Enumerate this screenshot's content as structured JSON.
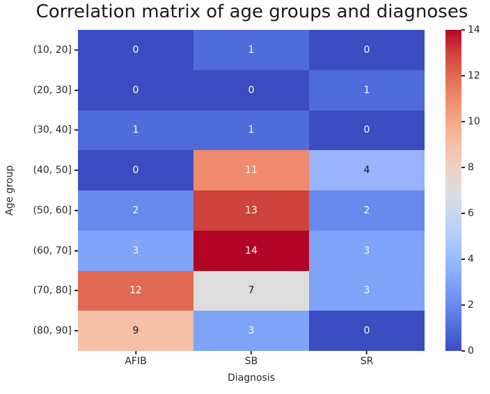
{
  "chart_data": {
    "type": "heatmap",
    "title": "Correlation matrix of age groups and diagnoses",
    "xlabel": "Diagnosis",
    "ylabel": "Age group",
    "x_categories": [
      "AFIB",
      "SB",
      "SR"
    ],
    "y_categories": [
      "(10, 20]",
      "(20, 30]",
      "(30, 40]",
      "(40, 50]",
      "(50, 60]",
      "(60, 70]",
      "(70, 80]",
      "(80, 90]"
    ],
    "values": [
      [
        0,
        1,
        0
      ],
      [
        0,
        0,
        1
      ],
      [
        1,
        1,
        0
      ],
      [
        0,
        11,
        4
      ],
      [
        2,
        13,
        2
      ],
      [
        3,
        14,
        3
      ],
      [
        12,
        7,
        3
      ],
      [
        9,
        3,
        0
      ]
    ],
    "colormap": "coolwarm",
    "vmin": 0,
    "vmax": 14,
    "colorbar_ticks": [
      0,
      2,
      4,
      6,
      8,
      10,
      12,
      14
    ],
    "legend_position": "right-colorbar",
    "grid": false
  },
  "style": {
    "background": "#ffffff",
    "title_color": "#1a1a1a",
    "tick_color": "#262626",
    "annotation_dark_text": "#151515",
    "annotation_light_text": "#ffffff",
    "value_colors": {
      "0": "#3b4cc0",
      "1": "#506cda",
      "2": "#6889ee",
      "3": "#80a3fa",
      "4": "#98b4fc",
      "7": "#dddddd",
      "9": "#f6bfa6",
      "11": "#f08b6d",
      "12": "#e26953",
      "13": "#ce433b",
      "14": "#b40426"
    },
    "value_text_colors": {
      "0": "#ffffff",
      "1": "#ffffff",
      "2": "#ffffff",
      "3": "#ffffff",
      "4": "#151515",
      "7": "#151515",
      "9": "#151515",
      "11": "#ffffff",
      "12": "#ffffff",
      "13": "#ffffff",
      "14": "#ffffff"
    },
    "colorbar_gradient_bottom_to_top": [
      "#3b4cc0",
      "#4d68d7",
      "#6282ea",
      "#779af7",
      "#8db0fe",
      "#a3c2ff",
      "#b8d0f9",
      "#ccd9ee",
      "#dddddd",
      "#ecd3c5",
      "#f5c4ad",
      "#f7b194",
      "#f49a7b",
      "#ec7f63",
      "#de604d",
      "#cb3e38",
      "#b40426"
    ]
  }
}
